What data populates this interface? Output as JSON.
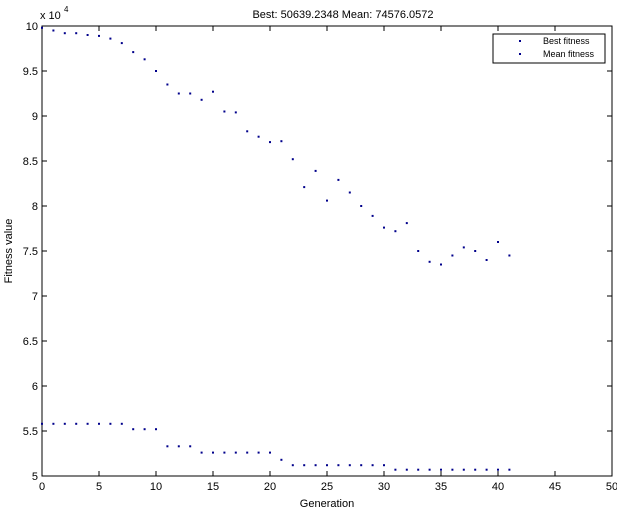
{
  "chart_data": {
    "type": "scatter",
    "title": "Best: 50639.2348 Mean: 74576.0572",
    "xlabel": "Generation",
    "ylabel": "Fitness value",
    "y_multiplier_label": "x 10",
    "y_multiplier_exponent": "4",
    "xlim": [
      0,
      50
    ],
    "ylim": [
      5,
      10
    ],
    "xticks": [
      0,
      5,
      10,
      15,
      20,
      25,
      30,
      35,
      40,
      45,
      50
    ],
    "yticks": [
      5,
      5.5,
      6,
      6.5,
      7,
      7.5,
      8,
      8.5,
      9,
      9.5,
      10
    ],
    "xtick_labels": [
      "0",
      "5",
      "10",
      "15",
      "20",
      "25",
      "30",
      "35",
      "40",
      "45",
      "50"
    ],
    "ytick_labels": [
      "5",
      "5.5",
      "6",
      "6.5",
      "7",
      "7.5",
      "8",
      "8.5",
      "9",
      "9.5",
      "10"
    ],
    "grid": false,
    "legend_position": "top-right",
    "marker_color": "#00008b",
    "series": [
      {
        "name": "Best fitness",
        "x": [
          0,
          1,
          2,
          3,
          4,
          5,
          6,
          7,
          8,
          9,
          10,
          11,
          12,
          13,
          14,
          15,
          16,
          17,
          18,
          19,
          20,
          21,
          22,
          23,
          24,
          25,
          26,
          27,
          28,
          29,
          30,
          31,
          32,
          33,
          34,
          35,
          36,
          37,
          38,
          39,
          40,
          41
        ],
        "y": [
          5.58,
          5.58,
          5.58,
          5.58,
          5.58,
          5.58,
          5.58,
          5.58,
          5.52,
          5.52,
          5.52,
          5.33,
          5.33,
          5.33,
          5.26,
          5.26,
          5.26,
          5.26,
          5.26,
          5.26,
          5.26,
          5.18,
          5.12,
          5.12,
          5.12,
          5.12,
          5.12,
          5.12,
          5.12,
          5.12,
          5.12,
          5.07,
          5.07,
          5.07,
          5.07,
          5.07,
          5.07,
          5.07,
          5.07,
          5.07,
          5.07,
          5.07
        ]
      },
      {
        "name": "Mean fitness",
        "x": [
          0,
          1,
          2,
          3,
          4,
          5,
          6,
          7,
          8,
          9,
          10,
          11,
          12,
          13,
          14,
          15,
          16,
          17,
          18,
          19,
          20,
          21,
          22,
          23,
          24,
          25,
          26,
          27,
          28,
          29,
          30,
          31,
          32,
          33,
          34,
          35,
          36,
          37,
          38,
          39,
          40,
          41
        ],
        "y": [
          9.98,
          9.95,
          9.92,
          9.92,
          9.9,
          9.89,
          9.86,
          9.81,
          9.71,
          9.63,
          9.5,
          9.35,
          9.25,
          9.25,
          9.18,
          9.27,
          9.05,
          9.04,
          8.83,
          8.77,
          8.71,
          8.72,
          8.52,
          8.21,
          8.39,
          8.06,
          8.29,
          8.15,
          8.0,
          7.89,
          7.76,
          7.72,
          7.81,
          7.5,
          7.38,
          7.35,
          7.45,
          7.54,
          7.5,
          7.4,
          7.6,
          7.45
        ]
      }
    ]
  }
}
